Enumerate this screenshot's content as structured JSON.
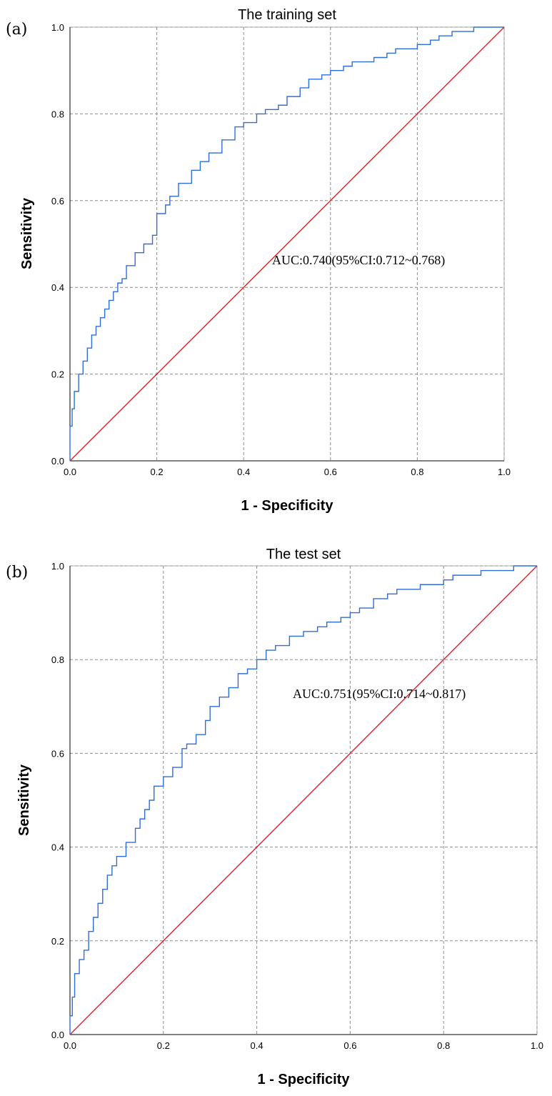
{
  "chart_data": [
    {
      "type": "line",
      "panel_label": "(a)",
      "title": "The training set",
      "xlabel": "1 - Specificity",
      "ylabel": "Sensitivity",
      "xlim": [
        0,
        1
      ],
      "ylim": [
        0,
        1
      ],
      "x_ticks": [
        "0.0",
        "0.2",
        "0.4",
        "0.6",
        "0.8",
        "1.0"
      ],
      "y_ticks": [
        "0.0",
        "0.2",
        "0.4",
        "0.6",
        "0.8",
        "1.0"
      ],
      "grid": true,
      "annotation": "AUC:0.740(95%CI:0.712~0.768)",
      "colors": {
        "roc": "#2f6ed6",
        "reference": "#e0202a"
      },
      "series": [
        {
          "x": [
            0,
            0.005,
            0.01,
            0.02,
            0.03,
            0.04,
            0.05,
            0.06,
            0.07,
            0.08,
            0.09,
            0.1,
            0.11,
            0.12,
            0.13,
            0.15,
            0.17,
            0.19,
            0.2,
            0.22,
            0.23,
            0.25,
            0.28,
            0.3,
            0.32,
            0.35,
            0.38,
            0.4,
            0.43,
            0.45,
            0.48,
            0.5,
            0.53,
            0.55,
            0.58,
            0.6,
            0.63,
            0.65,
            0.68,
            0.7,
            0.73,
            0.75,
            0.78,
            0.8,
            0.83,
            0.85,
            0.88,
            0.9,
            0.93,
            0.95,
            0.98,
            1.0
          ],
          "y": [
            0,
            0.08,
            0.12,
            0.16,
            0.2,
            0.23,
            0.26,
            0.29,
            0.31,
            0.33,
            0.35,
            0.37,
            0.39,
            0.41,
            0.42,
            0.45,
            0.48,
            0.5,
            0.52,
            0.57,
            0.59,
            0.61,
            0.64,
            0.67,
            0.69,
            0.71,
            0.74,
            0.77,
            0.78,
            0.8,
            0.81,
            0.82,
            0.84,
            0.86,
            0.88,
            0.89,
            0.9,
            0.91,
            0.92,
            0.92,
            0.93,
            0.94,
            0.95,
            0.95,
            0.96,
            0.97,
            0.98,
            0.99,
            0.99,
            1.0,
            1.0,
            1.0
          ]
        },
        {
          "x": [
            0,
            1
          ],
          "y": [
            0,
            1
          ]
        }
      ]
    },
    {
      "type": "line",
      "panel_label": "(b)",
      "title": "The test set",
      "xlabel": "1 - Specificity",
      "ylabel": "Sensitivity",
      "xlim": [
        0,
        1
      ],
      "ylim": [
        0,
        1
      ],
      "x_ticks": [
        "0.0",
        "0.2",
        "0.4",
        "0.6",
        "0.8",
        "1.0"
      ],
      "y_ticks": [
        "0.0",
        "0.2",
        "0.4",
        "0.6",
        "0.8",
        "1.0"
      ],
      "grid": true,
      "annotation": "AUC:0.751(95%CI:0.714~0.817)",
      "colors": {
        "roc": "#2f6ed6",
        "reference": "#e0202a"
      },
      "series": [
        {
          "x": [
            0,
            0.005,
            0.01,
            0.02,
            0.03,
            0.04,
            0.05,
            0.06,
            0.07,
            0.08,
            0.09,
            0.1,
            0.12,
            0.14,
            0.15,
            0.16,
            0.17,
            0.18,
            0.2,
            0.22,
            0.24,
            0.25,
            0.27,
            0.29,
            0.3,
            0.32,
            0.34,
            0.36,
            0.38,
            0.4,
            0.42,
            0.44,
            0.47,
            0.5,
            0.53,
            0.55,
            0.58,
            0.6,
            0.62,
            0.65,
            0.68,
            0.7,
            0.73,
            0.75,
            0.8,
            0.82,
            0.85,
            0.88,
            0.9,
            0.93,
            0.95,
            0.98,
            1.0
          ],
          "y": [
            0,
            0.04,
            0.08,
            0.13,
            0.16,
            0.18,
            0.22,
            0.25,
            0.28,
            0.31,
            0.34,
            0.36,
            0.38,
            0.41,
            0.44,
            0.46,
            0.48,
            0.5,
            0.53,
            0.55,
            0.57,
            0.61,
            0.62,
            0.64,
            0.67,
            0.7,
            0.72,
            0.74,
            0.77,
            0.78,
            0.8,
            0.82,
            0.83,
            0.85,
            0.86,
            0.87,
            0.88,
            0.89,
            0.9,
            0.91,
            0.93,
            0.94,
            0.95,
            0.95,
            0.96,
            0.97,
            0.98,
            0.98,
            0.99,
            0.99,
            0.99,
            1.0,
            1.0
          ]
        },
        {
          "x": [
            0,
            1
          ],
          "y": [
            0,
            1
          ]
        }
      ]
    }
  ]
}
